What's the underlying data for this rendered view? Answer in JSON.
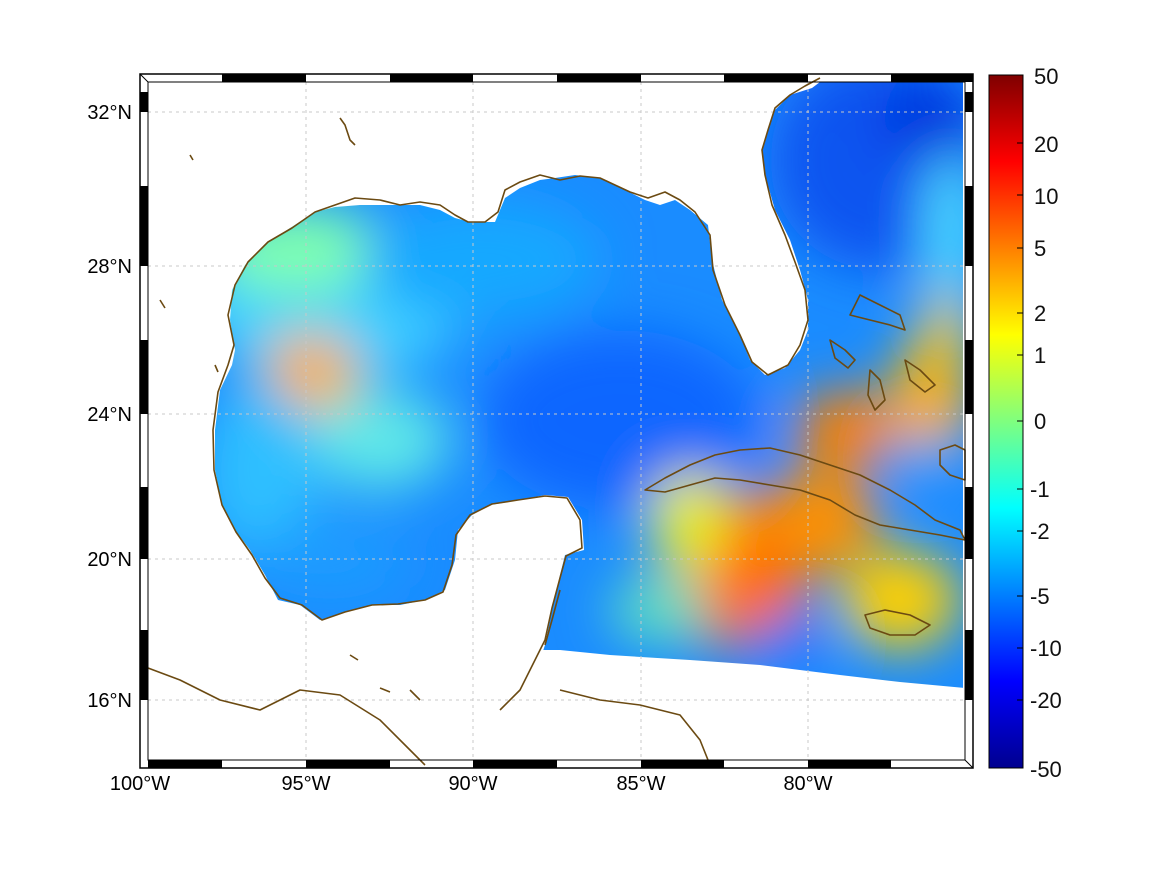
{
  "map": {
    "lon_range": [
      -100,
      -75
    ],
    "lat_range": [
      14.2,
      33
    ],
    "x_tick_labels": [
      "100°W",
      "95°W",
      "90°W",
      "85°W",
      "80°W"
    ],
    "y_tick_labels": [
      "32°N",
      "28°N",
      "24°N",
      "20°N",
      "16°N"
    ],
    "grid": true,
    "coastline_color": "#6b4a12",
    "land_color": "#ffffff",
    "frame_style": "black-white striped"
  },
  "colorbar": {
    "colormap": "jet",
    "placement": "right",
    "tick_labels": [
      "50",
      "20",
      "10",
      "5",
      "2",
      "1",
      "0",
      "-1",
      "-2",
      "-5",
      "-10",
      "-20",
      "-50"
    ],
    "tick_values": [
      50,
      20,
      10,
      5,
      2,
      1,
      0,
      -1,
      -2,
      -5,
      -10,
      -20,
      -50
    ]
  },
  "field_features": [
    {
      "region": "western Gulf anomaly near 95°W 25°N",
      "level": "positive (~2–5)"
    },
    {
      "region": "Caribbean south of Cuba",
      "level": "positive (~5–10)"
    },
    {
      "region": "Bahamas / Straits area",
      "level": "positive (~5)"
    },
    {
      "region": "central & eastern Gulf",
      "level": "negative (~-5 to -10)"
    },
    {
      "region": "Atlantic off Georgia/Carolinas",
      "level": "negative (~-10 to -20)"
    }
  ]
}
